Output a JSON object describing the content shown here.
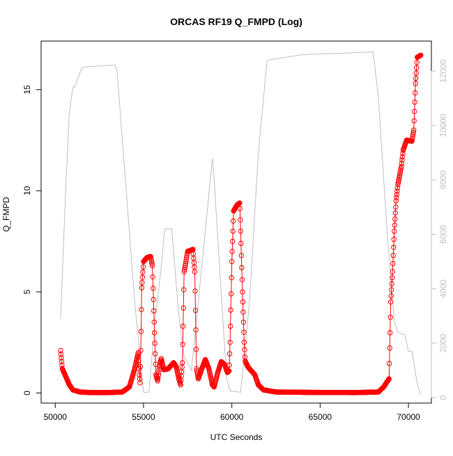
{
  "chart_data": {
    "type": "scatter",
    "title": "ORCAS RF19 Q_FMPD (Log)",
    "xlabel": "UTC Seconds",
    "ylabel": "Q_FMPD",
    "xlim": [
      49200,
      71300
    ],
    "ylim": [
      -0.5,
      17.4
    ],
    "y2lim": [
      -200,
      13100
    ],
    "x_ticks": [
      50000,
      55000,
      60000,
      65000,
      70000
    ],
    "x_tick_labels": [
      "50000",
      "55000",
      "60000",
      "65000",
      "70000"
    ],
    "y_ticks": [
      0,
      5,
      10,
      15
    ],
    "y_tick_labels": [
      "0",
      "5",
      "10",
      "15"
    ],
    "y2_ticks": [
      0,
      2000,
      4000,
      6000,
      8000,
      10000,
      12000
    ],
    "y2_tick_labels": [
      "0",
      "2000",
      "4000",
      "6000",
      "8000",
      "10000",
      "12000"
    ],
    "grid": false,
    "series": [
      {
        "role": "primary",
        "style": "points+line",
        "color": "#ff0000",
        "knots": [
          [
            50300,
            2.1
          ],
          [
            50400,
            1.2
          ],
          [
            50600,
            0.8
          ],
          [
            50800,
            0.4
          ],
          [
            51000,
            0.15
          ],
          [
            51400,
            0.05
          ],
          [
            52000,
            0.02
          ],
          [
            53000,
            0.02
          ],
          [
            53800,
            0.05
          ],
          [
            54200,
            0.3
          ],
          [
            54500,
            1.2
          ],
          [
            54700,
            2.0
          ],
          [
            54750,
            1.0
          ],
          [
            54800,
            0.5
          ],
          [
            54850,
            2.5
          ],
          [
            54900,
            5.2
          ],
          [
            55000,
            6.5
          ],
          [
            55200,
            6.7
          ],
          [
            55400,
            6.75
          ],
          [
            55500,
            6.3
          ],
          [
            55600,
            3.5
          ],
          [
            55700,
            0.9
          ],
          [
            55800,
            0.6
          ],
          [
            55900,
            1.3
          ],
          [
            56000,
            1.7
          ],
          [
            56150,
            1.15
          ],
          [
            56400,
            1.2
          ],
          [
            56700,
            1.5
          ],
          [
            56850,
            1.3
          ],
          [
            57000,
            0.7
          ],
          [
            57100,
            0.4
          ],
          [
            57200,
            1.5
          ],
          [
            57300,
            6.0
          ],
          [
            57500,
            7.0
          ],
          [
            57800,
            7.1
          ],
          [
            57900,
            6.0
          ],
          [
            58000,
            1.2
          ],
          [
            58100,
            0.7
          ],
          [
            58300,
            1.2
          ],
          [
            58500,
            1.65
          ],
          [
            58700,
            1.2
          ],
          [
            58900,
            0.4
          ],
          [
            59000,
            0.3
          ],
          [
            59200,
            1.0
          ],
          [
            59400,
            1.55
          ],
          [
            59600,
            1.4
          ],
          [
            59750,
            1.0
          ],
          [
            59850,
            1.1
          ],
          [
            59900,
            2.5
          ],
          [
            60000,
            6.5
          ],
          [
            60100,
            9.0
          ],
          [
            60300,
            9.3
          ],
          [
            60450,
            9.4
          ],
          [
            60500,
            8.0
          ],
          [
            60600,
            5.0
          ],
          [
            60700,
            2.5
          ],
          [
            60750,
            1.6
          ],
          [
            60900,
            1.3
          ],
          [
            61300,
            0.9
          ],
          [
            61500,
            0.4
          ],
          [
            61800,
            0.15
          ],
          [
            62500,
            0.05
          ],
          [
            64500,
            0.03
          ],
          [
            67000,
            0.02
          ],
          [
            68300,
            0.05
          ],
          [
            68600,
            0.3
          ],
          [
            68900,
            0.7
          ],
          [
            69000,
            4.5
          ],
          [
            69100,
            6.0
          ],
          [
            69200,
            8.0
          ],
          [
            69300,
            9.5
          ],
          [
            69400,
            10.3
          ],
          [
            69600,
            11.2
          ],
          [
            69700,
            12.0
          ],
          [
            69900,
            12.5
          ],
          [
            70200,
            12.45
          ],
          [
            70300,
            13.0
          ],
          [
            70400,
            15.3
          ],
          [
            70500,
            16.6
          ],
          [
            70700,
            16.7
          ]
        ]
      },
      {
        "role": "secondary",
        "style": "line",
        "color": "#bebebe",
        "points": [
          [
            50300,
            2900
          ],
          [
            50600,
            7800
          ],
          [
            50800,
            10500
          ],
          [
            51000,
            11400
          ],
          [
            51100,
            11420
          ],
          [
            51500,
            12100
          ],
          [
            51700,
            12150
          ],
          [
            53400,
            12220
          ],
          [
            53500,
            12000
          ],
          [
            54500,
            3500
          ],
          [
            55000,
            200
          ],
          [
            55300,
            200
          ],
          [
            55600,
            2500
          ],
          [
            56000,
            4800
          ],
          [
            56200,
            6200
          ],
          [
            56600,
            6200
          ],
          [
            57000,
            3000
          ],
          [
            57300,
            1500
          ],
          [
            57700,
            1000
          ],
          [
            57900,
            2200
          ],
          [
            58900,
            8800
          ],
          [
            59000,
            8000
          ],
          [
            59700,
            700
          ],
          [
            59900,
            250
          ],
          [
            60500,
            200
          ],
          [
            61000,
            3500
          ],
          [
            61500,
            9000
          ],
          [
            62000,
            12400
          ],
          [
            63000,
            12500
          ],
          [
            64000,
            12600
          ],
          [
            66000,
            12650
          ],
          [
            68000,
            12700
          ],
          [
            68300,
            11000
          ],
          [
            68800,
            6000
          ],
          [
            69200,
            2800
          ],
          [
            69400,
            2400
          ],
          [
            69800,
            2300
          ],
          [
            70000,
            1700
          ],
          [
            70200,
            1700
          ],
          [
            70400,
            900
          ],
          [
            70500,
            500
          ],
          [
            70700,
            100
          ]
        ]
      }
    ]
  }
}
